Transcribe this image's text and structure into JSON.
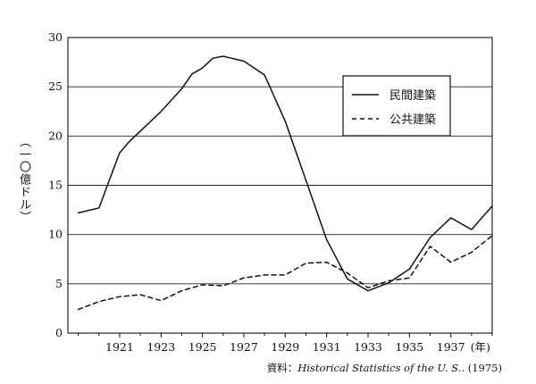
{
  "chart_data": {
    "type": "line",
    "ylabel": "（一〇億ドル）",
    "x_unit": "(年)",
    "ylim": [
      0,
      30
    ],
    "xlim": [
      1918.5,
      1939
    ],
    "yticks": [
      0,
      5,
      10,
      15,
      20,
      25,
      30
    ],
    "xticks": [
      1921,
      1923,
      1925,
      1927,
      1929,
      1931,
      1933,
      1935,
      1937
    ],
    "grid": "horizontal",
    "legend_position": "top-right",
    "series": [
      {
        "name": "民間建築",
        "style": "solid",
        "color": "#111111",
        "x": [
          1919,
          1920,
          1920.5,
          1921,
          1921.5,
          1922,
          1923,
          1924,
          1924.5,
          1925,
          1925.5,
          1926,
          1927,
          1928,
          1929,
          1930,
          1931,
          1932,
          1933,
          1934,
          1935,
          1936,
          1937,
          1938,
          1939
        ],
        "y": [
          12.2,
          12.7,
          15.5,
          18.3,
          19.5,
          20.5,
          22.5,
          24.8,
          26.3,
          26.9,
          27.9,
          28.1,
          27.6,
          26.2,
          21.5,
          15.5,
          9.5,
          5.5,
          4.3,
          5.1,
          6.5,
          9.7,
          11.7,
          10.5,
          12.9
        ]
      },
      {
        "name": "公共建築",
        "style": "dashed",
        "color": "#111111",
        "x": [
          1919,
          1920,
          1921,
          1922,
          1923,
          1924,
          1925,
          1926,
          1927,
          1928,
          1929,
          1930,
          1931,
          1932,
          1933,
          1934,
          1935,
          1936,
          1937,
          1938,
          1939
        ],
        "y": [
          2.4,
          3.2,
          3.7,
          3.9,
          3.3,
          4.3,
          4.9,
          4.8,
          5.6,
          5.9,
          5.9,
          7.1,
          7.2,
          6.1,
          4.6,
          5.3,
          5.6,
          8.8,
          7.2,
          8.2,
          9.9
        ]
      }
    ]
  },
  "source": {
    "prefix": "資料：",
    "title": "Historical Statistics of the U. S.",
    "year": "(1975)"
  }
}
